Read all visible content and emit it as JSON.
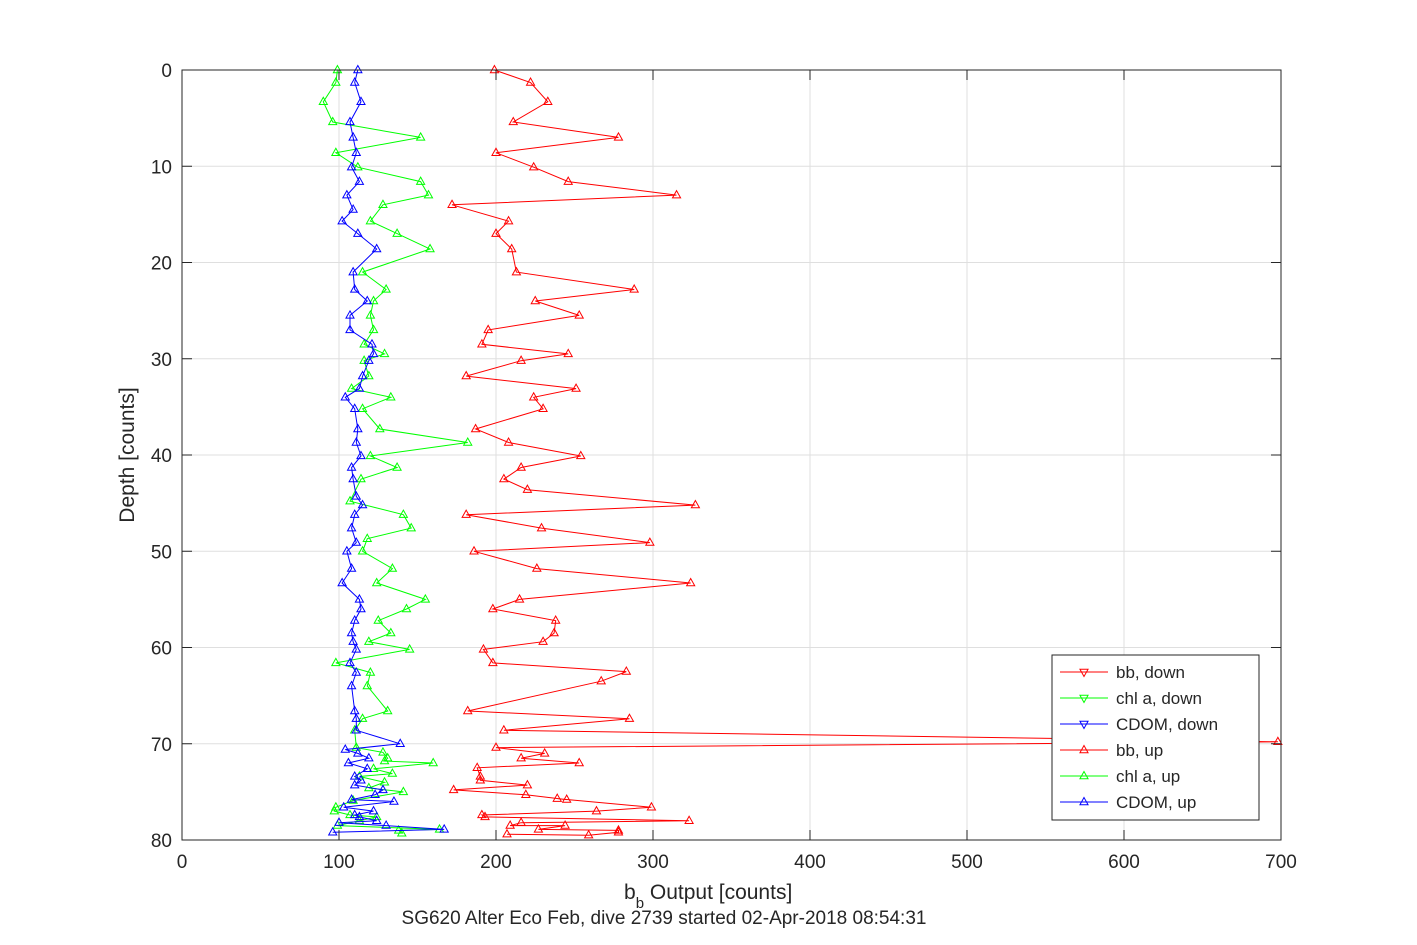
{
  "chart_data": {
    "type": "line",
    "xlabel_main": "b",
    "xlabel_sub": "b",
    "xlabel_rest": " Output [counts]",
    "ylabel": "Depth [counts]",
    "title": "SG620 Alter Eco Feb, dive 2739 started 02-Apr-2018 08:54:31",
    "xlim": [
      0,
      700
    ],
    "ylim": [
      0,
      80
    ],
    "y_reversed": true,
    "grid": true,
    "legend_position": "bottom-right",
    "x_ticks": [
      "0",
      "100",
      "200",
      "300",
      "400",
      "500",
      "600",
      "700"
    ],
    "y_ticks": [
      "0",
      "10",
      "20",
      "30",
      "40",
      "50",
      "60",
      "70",
      "80"
    ],
    "series": [
      {
        "name": "bb, down",
        "color": "#ff0000",
        "marker": "triangle-down",
        "x": [],
        "y": []
      },
      {
        "name": "chl a, down",
        "color": "#00ff00",
        "marker": "triangle-down",
        "x": [],
        "y": []
      },
      {
        "name": "CDOM, down",
        "color": "#0000ff",
        "marker": "triangle-down",
        "x": [],
        "y": []
      },
      {
        "name": "bb, up",
        "color": "#ff0000",
        "marker": "triangle-up",
        "x": [
          199,
          222,
          233,
          211,
          278,
          200,
          224,
          246,
          315,
          172,
          208,
          200,
          210,
          213,
          288,
          225,
          253,
          195,
          191,
          246,
          216,
          181,
          251,
          224,
          230,
          187,
          208,
          254,
          216,
          205,
          220,
          327,
          181,
          229,
          298,
          186,
          226,
          324,
          215,
          198,
          238,
          237,
          230,
          192,
          198,
          283,
          267,
          182,
          285,
          205,
          698,
          200,
          231,
          216,
          253,
          188,
          190,
          190,
          220,
          173,
          219,
          245,
          239,
          299,
          264,
          191,
          193,
          323,
          216,
          209,
          244,
          227,
          278,
          278,
          259,
          207
        ],
        "y": [
          0,
          1.3,
          3.3,
          5.4,
          7,
          8.6,
          10.1,
          11.6,
          13,
          14,
          15.7,
          17,
          18.6,
          21,
          22.8,
          24,
          25.5,
          27,
          28.5,
          29.5,
          30.2,
          31.8,
          33.1,
          34,
          35.2,
          37.3,
          38.7,
          40.1,
          41.3,
          42.5,
          43.6,
          45.2,
          46.2,
          47.6,
          49.1,
          50.0,
          51.8,
          53.3,
          55.0,
          56.0,
          57.2,
          58.5,
          59.4,
          60.2,
          61.6,
          62.5,
          63.5,
          66.6,
          67.4,
          68.6,
          69.8,
          70.4,
          71.0,
          71.5,
          72.0,
          72.5,
          73.4,
          73.8,
          74.3,
          74.8,
          75.3,
          75.8,
          75.7,
          76.6,
          77.0,
          77.4,
          77.6,
          78.0,
          78.2,
          78.5,
          78.5,
          78.9,
          79.0,
          79.2,
          79.5,
          79.4
        ]
      },
      {
        "name": "chl a, up",
        "color": "#00ff00",
        "marker": "triangle-up",
        "x": [
          99,
          98,
          90,
          96,
          152,
          98,
          112,
          152,
          157,
          128,
          120,
          137,
          158,
          115,
          130,
          122,
          120,
          122,
          116,
          129,
          116,
          119,
          108,
          133,
          115,
          126,
          182,
          120,
          137,
          114,
          107,
          141,
          146,
          118,
          115,
          134,
          124,
          155,
          143,
          125,
          133,
          119,
          145,
          98,
          120,
          118,
          131,
          115,
          110,
          111,
          128,
          131,
          129,
          160,
          122,
          134,
          113,
          129,
          119,
          141,
          109,
          98,
          97,
          107,
          124,
          113,
          99,
          164,
          138,
          140
        ],
        "y": [
          0,
          1.3,
          3.3,
          5.4,
          7,
          8.6,
          10.1,
          11.6,
          13,
          14,
          15.7,
          17,
          18.6,
          21,
          22.8,
          24,
          25.5,
          27,
          28.5,
          29.5,
          30.2,
          31.8,
          33.1,
          34,
          35.2,
          37.3,
          38.7,
          40.1,
          41.3,
          42.5,
          44.8,
          46.2,
          47.6,
          48.7,
          50.0,
          51.8,
          53.3,
          55.0,
          56.0,
          57.2,
          58.5,
          59.4,
          60.2,
          61.6,
          62.6,
          64.0,
          66.6,
          67.4,
          68.6,
          70.4,
          70.9,
          71.5,
          71.8,
          72.0,
          72.6,
          73.1,
          73.4,
          74.0,
          74.6,
          75.0,
          75.9,
          76.6,
          77.0,
          77.4,
          77.6,
          78.0,
          78.5,
          78.9,
          79.0,
          79.3
        ]
      },
      {
        "name": "CDOM, up",
        "color": "#0000ff",
        "marker": "triangle-up",
        "x": [
          112,
          110,
          114,
          107,
          109,
          111,
          108,
          113,
          105,
          109,
          102,
          112,
          124,
          109,
          110,
          118,
          107,
          107,
          121,
          122,
          119,
          115,
          113,
          104,
          110,
          112,
          111,
          114,
          108,
          109,
          111,
          115,
          110,
          108,
          111,
          105,
          108,
          102,
          113,
          114,
          110,
          108,
          109,
          111,
          107,
          111,
          108,
          110,
          111,
          111,
          139,
          104,
          112,
          119,
          106,
          118,
          110,
          114,
          110,
          128,
          123,
          108,
          135,
          103,
          122,
          110,
          113,
          124,
          100,
          130,
          167,
          96
        ],
        "y": [
          0,
          1.3,
          3.3,
          5.4,
          7,
          8.6,
          10.1,
          11.6,
          13,
          14.5,
          15.7,
          17,
          18.6,
          21,
          22.8,
          24,
          25.5,
          27,
          28.5,
          29.5,
          30.2,
          31.8,
          33.1,
          34,
          35.2,
          37.3,
          38.7,
          40.1,
          41.3,
          42.5,
          44.3,
          45.2,
          46.2,
          47.6,
          49.1,
          50.0,
          51.8,
          53.3,
          55.0,
          56.0,
          57.2,
          58.5,
          59.4,
          60.2,
          61.6,
          62.6,
          64.0,
          66.6,
          67.4,
          68.6,
          70.0,
          70.6,
          71.0,
          71.5,
          72.0,
          72.6,
          73.4,
          73.8,
          74.3,
          74.8,
          75.3,
          75.8,
          76.0,
          76.6,
          77.0,
          77.4,
          77.6,
          78.0,
          78.2,
          78.5,
          78.9,
          79.2
        ]
      }
    ]
  }
}
